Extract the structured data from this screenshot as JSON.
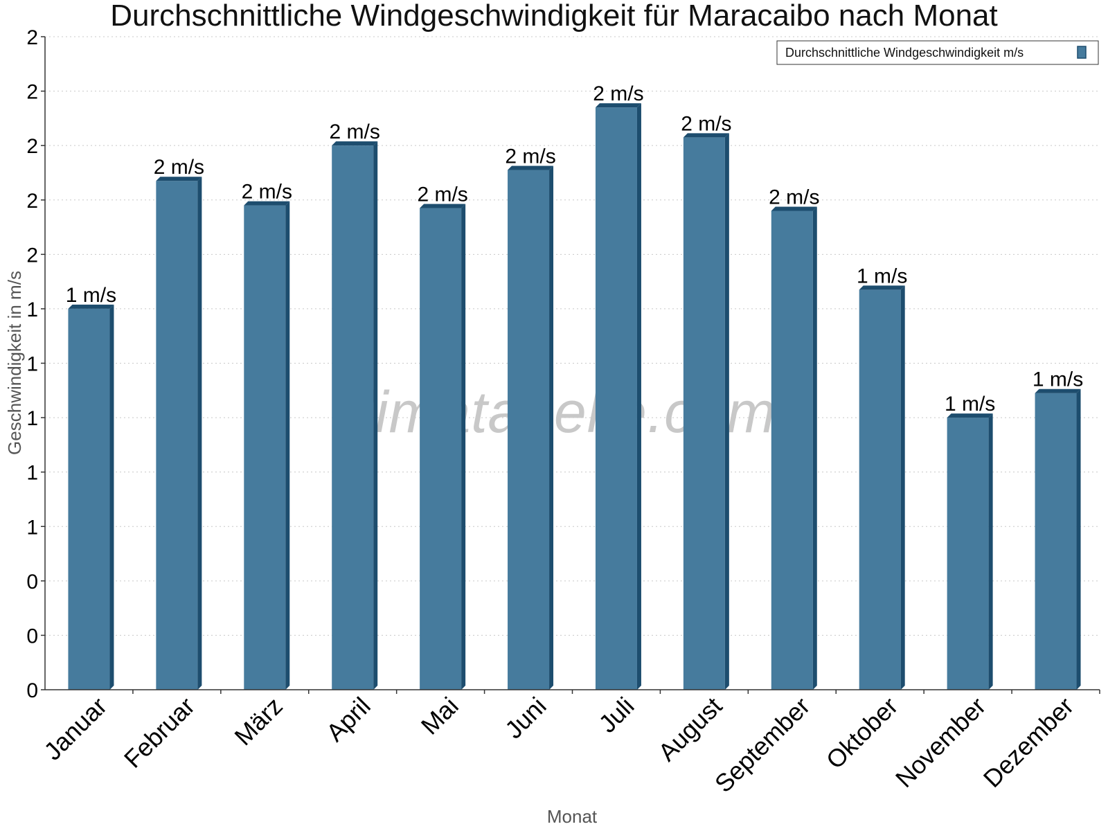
{
  "chart_data": {
    "type": "bar",
    "title": "Durchschnittliche Windgeschwindigkeit für Maracaibo nach Monat",
    "xlabel": "Monat",
    "ylabel": "Geschwindigkeit in m/s",
    "categories": [
      "Januar",
      "Februar",
      "März",
      "April",
      "Mai",
      "Juni",
      "Juli",
      "August",
      "September",
      "Oktober",
      "November",
      "Dezember"
    ],
    "series": [
      {
        "name": "Durchschnittliche Windgeschwindigkeit m/s",
        "values": [
          1.4,
          1.87,
          1.78,
          2.0,
          1.77,
          1.91,
          2.14,
          2.03,
          1.76,
          1.47,
          1.0,
          1.09
        ],
        "labels": [
          "1 m/s",
          "2 m/s",
          "2 m/s",
          "2 m/s",
          "2 m/s",
          "2 m/s",
          "2 m/s",
          "2 m/s",
          "2 m/s",
          "1 m/s",
          "1 m/s",
          "1 m/s"
        ],
        "color": "#467b9d",
        "shade_color": "#1d4d6e"
      }
    ],
    "ylim": [
      0,
      2.4
    ],
    "yticks": [
      0,
      0.2,
      0.4,
      0.6,
      0.8,
      1.0,
      1.2,
      1.4,
      1.6,
      1.8,
      2.0,
      2.2,
      2.4
    ],
    "ytick_labels": [
      "0",
      "0",
      "0",
      "1",
      "1",
      "1",
      "1",
      "1",
      "2",
      "2",
      "2",
      "2",
      "2"
    ],
    "grid": true,
    "legend_position": "top-right",
    "watermark": "klimatabelle.com"
  }
}
